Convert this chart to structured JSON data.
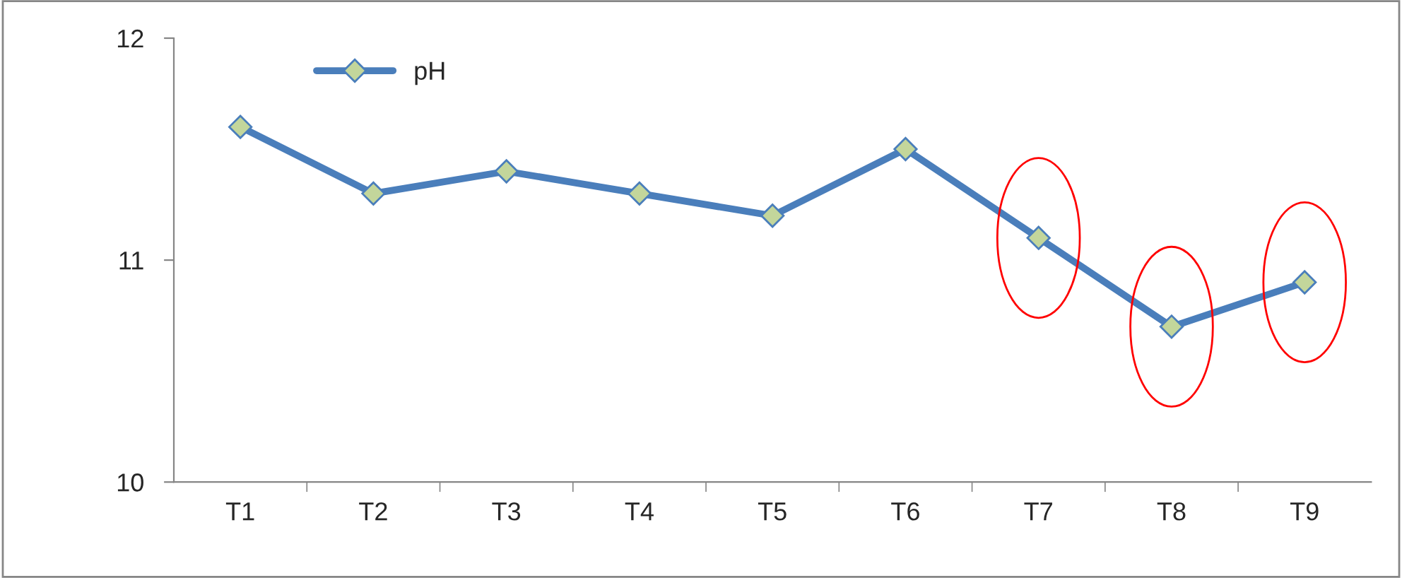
{
  "chart_data": {
    "type": "line",
    "categories": [
      "T1",
      "T2",
      "T3",
      "T4",
      "T5",
      "T6",
      "T7",
      "T8",
      "T9"
    ],
    "series": [
      {
        "name": "pH",
        "color": "#4a7ebb",
        "values": [
          11.6,
          11.3,
          11.4,
          11.3,
          11.2,
          11.5,
          11.1,
          10.7,
          10.9
        ]
      }
    ],
    "ylim": [
      10,
      12
    ],
    "yticks": [
      10,
      11,
      12
    ],
    "grid": false,
    "legend": "top left",
    "marker": "diamond",
    "line_style": "solid"
  }
}
